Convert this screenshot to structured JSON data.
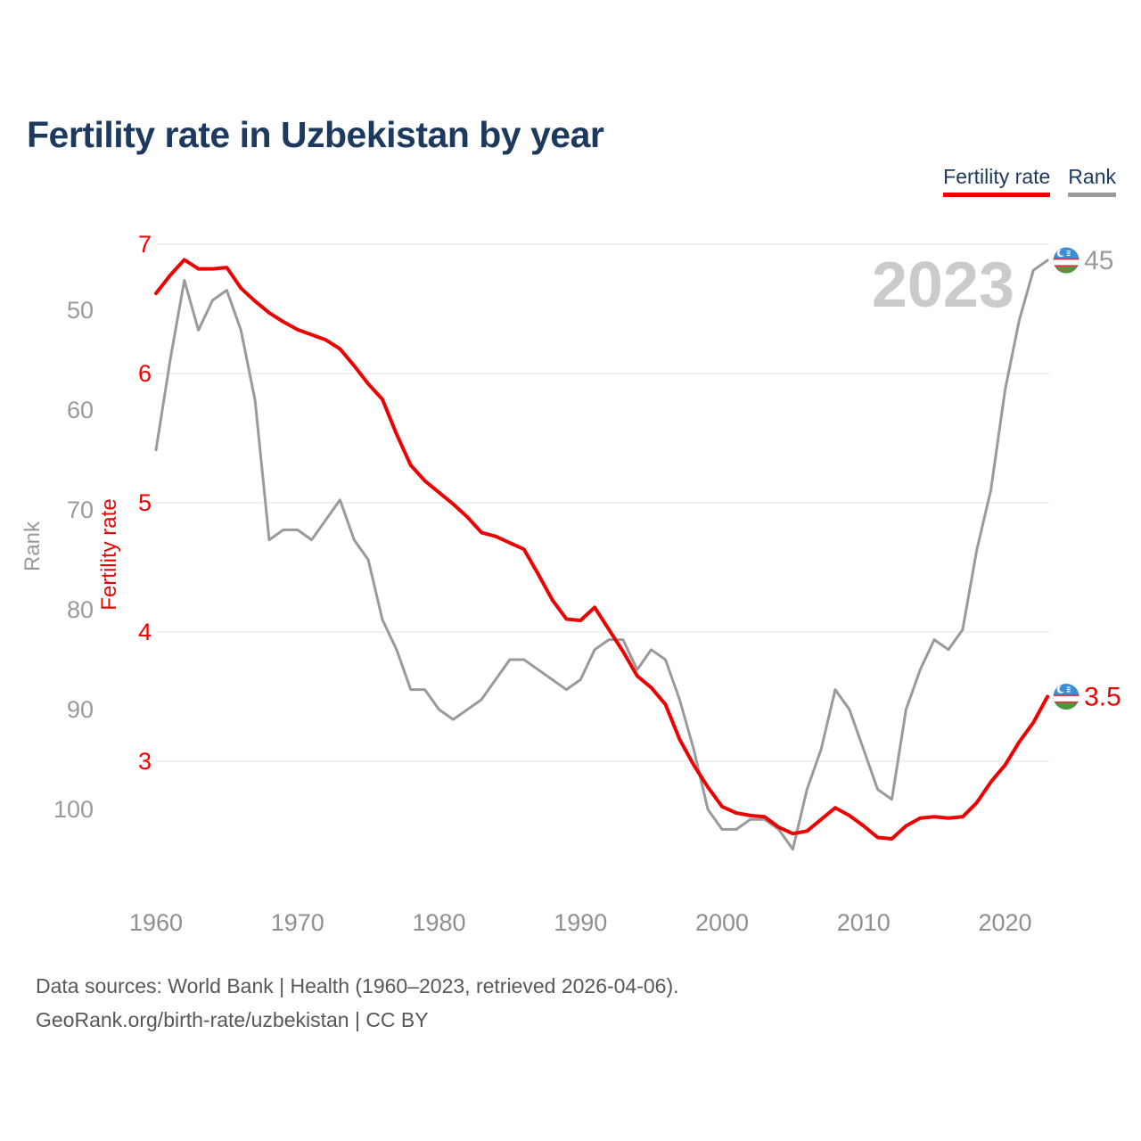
{
  "page": {
    "title": "Fertility rate in Uzbekistan by year",
    "footer_line1": "Data sources: World Bank | Health (1960–2023, retrieved 2026-04-06).",
    "footer_line2": "GeoRank.org/birth-rate/uzbekistan | CC BY"
  },
  "legend": {
    "items": [
      {
        "label": "Fertility rate",
        "color": "#ee0000"
      },
      {
        "label": "Rank",
        "color": "#9a9a9a"
      }
    ]
  },
  "watermark": "2023",
  "colors": {
    "red": "#ee0000",
    "gray_line": "#9a9a9a",
    "grid": "#ececec",
    "x_tick_gray": "#8f8f8f",
    "title_navy": "#1d3a5e",
    "footer_gray": "#575757",
    "watermark_gray": "#cbcbcb",
    "flag_blue": "#3b8ed8",
    "flag_green": "#52953e",
    "flag_red": "#d6313c"
  },
  "chart_data": {
    "type": "line",
    "title": "Fertility rate in Uzbekistan by year",
    "grid": "horizontal-fertility-ticks-only",
    "legend_position": "top-right",
    "x": [
      1960,
      1961,
      1962,
      1963,
      1964,
      1965,
      1966,
      1967,
      1968,
      1969,
      1970,
      1971,
      1972,
      1973,
      1974,
      1975,
      1976,
      1977,
      1978,
      1979,
      1980,
      1981,
      1982,
      1983,
      1984,
      1985,
      1986,
      1987,
      1988,
      1989,
      1990,
      1991,
      1992,
      1993,
      1994,
      1995,
      1996,
      1997,
      1998,
      1999,
      2000,
      2001,
      2002,
      2003,
      2004,
      2005,
      2006,
      2007,
      2008,
      2009,
      2010,
      2011,
      2012,
      2013,
      2014,
      2015,
      2016,
      2017,
      2018,
      2019,
      2020,
      2021,
      2022,
      2023
    ],
    "x_ticks": [
      1960,
      1970,
      1980,
      1990,
      2000,
      2010,
      2020
    ],
    "fertility_axis": {
      "label": "Fertility rate",
      "ticks": [
        7,
        6,
        5,
        4,
        3
      ],
      "range_top": 7,
      "range_bottom": 3,
      "color": "#ee0000"
    },
    "rank_axis": {
      "label": "Rank",
      "ticks": [
        50,
        60,
        70,
        80,
        90,
        100
      ],
      "inverted": true,
      "color": "#9a9a9a"
    },
    "series": [
      {
        "name": "Fertility rate",
        "axis": "fertility",
        "color": "#ee0000",
        "values": [
          6.62,
          6.76,
          6.88,
          6.81,
          6.81,
          6.82,
          6.66,
          6.56,
          6.47,
          6.4,
          6.34,
          6.3,
          6.26,
          6.19,
          6.06,
          5.92,
          5.8,
          5.53,
          5.29,
          5.17,
          5.08,
          4.99,
          4.89,
          4.77,
          4.74,
          4.69,
          4.64,
          4.45,
          4.25,
          4.1,
          4.09,
          4.19,
          4.02,
          3.85,
          3.66,
          3.57,
          3.44,
          3.17,
          2.97,
          2.8,
          2.65,
          2.6,
          2.58,
          2.57,
          2.49,
          2.44,
          2.46,
          2.55,
          2.64,
          2.58,
          2.5,
          2.41,
          2.4,
          2.5,
          2.56,
          2.57,
          2.56,
          2.57,
          2.68,
          2.84,
          2.97,
          3.15,
          3.3,
          3.5
        ]
      },
      {
        "name": "Rank",
        "axis": "rank",
        "color": "#9a9a9a",
        "values": [
          64,
          55,
          47,
          52,
          49,
          48,
          52,
          59,
          73,
          72,
          72,
          73,
          71,
          69,
          73,
          75,
          81,
          84,
          88,
          88,
          90,
          91,
          90,
          89,
          87,
          85,
          85,
          86,
          87,
          88,
          87,
          84,
          83,
          83,
          86,
          84,
          85,
          89,
          94,
          100,
          102,
          102,
          101,
          101,
          102,
          104,
          98,
          94,
          88,
          90,
          94,
          98,
          99,
          90,
          86,
          83,
          84,
          82,
          74,
          68,
          58,
          51,
          46,
          45
        ]
      }
    ],
    "end_labels": {
      "fertility": "3.5",
      "rank": "45"
    }
  }
}
